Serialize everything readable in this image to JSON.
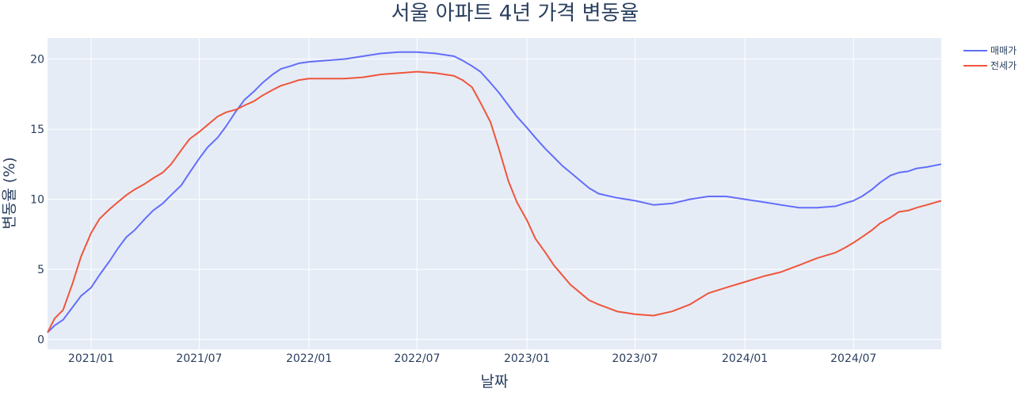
{
  "chart_data": {
    "type": "line",
    "title": "서울 아파트 4년 가격 변동율",
    "xlabel": "날짜",
    "ylabel": "변동율 (%)",
    "x_ticks": [
      "2021/01",
      "2021/07",
      "2022/01",
      "2022/07",
      "2023/01",
      "2023/07",
      "2024/01",
      "2024/07"
    ],
    "y_ticks": [
      0,
      5,
      10,
      15,
      20
    ],
    "xlim": [
      "2020/10/20",
      "2024/11/25"
    ],
    "ylim": [
      -0.7,
      21.5
    ],
    "grid": true,
    "legend_position": "top-right",
    "colors": {
      "plot_bg": "#e5ecf6",
      "grid": "#ffffff",
      "text": "#2a3f5f"
    },
    "series": [
      {
        "name": "매매가",
        "color": "#636efa",
        "x": [
          "2020/10/20",
          "2020/11/01",
          "2020/11/15",
          "2020/12/01",
          "2020/12/15",
          "2021/01/01",
          "2021/01/15",
          "2021/02/01",
          "2021/02/15",
          "2021/03/01",
          "2021/03/15",
          "2021/04/01",
          "2021/04/15",
          "2021/05/01",
          "2021/05/15",
          "2021/06/01",
          "2021/06/15",
          "2021/07/01",
          "2021/07/15",
          "2021/08/01",
          "2021/08/15",
          "2021/09/01",
          "2021/09/15",
          "2021/10/01",
          "2021/10/15",
          "2021/11/01",
          "2021/11/15",
          "2021/12/01",
          "2021/12/15",
          "2022/01/01",
          "2022/02/01",
          "2022/03/01",
          "2022/04/01",
          "2022/05/01",
          "2022/06/01",
          "2022/07/01",
          "2022/08/01",
          "2022/09/01",
          "2022/09/15",
          "2022/10/01",
          "2022/10/15",
          "2022/11/01",
          "2022/11/15",
          "2022/12/01",
          "2022/12/15",
          "2023/01/01",
          "2023/01/15",
          "2023/02/01",
          "2023/02/15",
          "2023/03/01",
          "2023/03/15",
          "2023/04/01",
          "2023/04/15",
          "2023/05/01",
          "2023/06/01",
          "2023/07/01",
          "2023/08/01",
          "2023/09/01",
          "2023/10/01",
          "2023/11/01",
          "2023/12/01",
          "2024/01/01",
          "2024/02/01",
          "2024/03/01",
          "2024/04/01",
          "2024/05/01",
          "2024/06/01",
          "2024/06/15",
          "2024/07/01",
          "2024/07/15",
          "2024/08/01",
          "2024/08/15",
          "2024/09/01",
          "2024/09/15",
          "2024/10/01",
          "2024/10/15",
          "2024/11/01",
          "2024/11/25"
        ],
        "y": [
          0.5,
          1.0,
          1.4,
          2.3,
          3.1,
          3.7,
          4.6,
          5.6,
          6.5,
          7.3,
          7.8,
          8.6,
          9.2,
          9.7,
          10.3,
          11.0,
          11.9,
          12.9,
          13.7,
          14.4,
          15.2,
          16.3,
          17.1,
          17.7,
          18.3,
          18.9,
          19.3,
          19.5,
          19.7,
          19.8,
          19.9,
          20.0,
          20.2,
          20.4,
          20.5,
          20.5,
          20.4,
          20.2,
          19.9,
          19.5,
          19.1,
          18.3,
          17.6,
          16.7,
          15.9,
          15.1,
          14.4,
          13.6,
          13.0,
          12.4,
          11.9,
          11.3,
          10.8,
          10.4,
          10.1,
          9.9,
          9.6,
          9.7,
          10.0,
          10.2,
          10.2,
          10.0,
          9.8,
          9.6,
          9.4,
          9.4,
          9.5,
          9.7,
          9.9,
          10.2,
          10.7,
          11.2,
          11.7,
          11.9,
          12.0,
          12.2,
          12.3,
          12.5
        ]
      },
      {
        "name": "전세가",
        "color": "#ef553b",
        "x": [
          "2020/10/20",
          "2020/11/01",
          "2020/11/15",
          "2020/12/01",
          "2020/12/15",
          "2021/01/01",
          "2021/01/15",
          "2021/02/01",
          "2021/02/15",
          "2021/03/01",
          "2021/03/15",
          "2021/04/01",
          "2021/04/15",
          "2021/05/01",
          "2021/05/15",
          "2021/06/01",
          "2021/06/15",
          "2021/07/01",
          "2021/07/15",
          "2021/08/01",
          "2021/08/15",
          "2021/09/01",
          "2021/09/15",
          "2021/10/01",
          "2021/10/15",
          "2021/11/01",
          "2021/11/15",
          "2021/12/01",
          "2021/12/15",
          "2022/01/01",
          "2022/02/01",
          "2022/03/01",
          "2022/04/01",
          "2022/05/01",
          "2022/06/01",
          "2022/07/01",
          "2022/08/01",
          "2022/09/01",
          "2022/09/15",
          "2022/10/01",
          "2022/10/15",
          "2022/11/01",
          "2022/11/15",
          "2022/12/01",
          "2022/12/15",
          "2023/01/01",
          "2023/01/15",
          "2023/02/01",
          "2023/02/15",
          "2023/03/01",
          "2023/03/15",
          "2023/04/01",
          "2023/04/15",
          "2023/05/01",
          "2023/06/01",
          "2023/07/01",
          "2023/08/01",
          "2023/09/01",
          "2023/10/01",
          "2023/11/01",
          "2023/12/01",
          "2024/01/01",
          "2024/02/01",
          "2024/03/01",
          "2024/04/01",
          "2024/05/01",
          "2024/06/01",
          "2024/06/15",
          "2024/07/01",
          "2024/07/15",
          "2024/08/01",
          "2024/08/15",
          "2024/09/01",
          "2024/09/15",
          "2024/10/01",
          "2024/10/15",
          "2024/11/01",
          "2024/11/25"
        ],
        "y": [
          0.5,
          1.5,
          2.1,
          4.0,
          5.9,
          7.6,
          8.6,
          9.3,
          9.8,
          10.3,
          10.7,
          11.1,
          11.5,
          11.9,
          12.5,
          13.5,
          14.3,
          14.8,
          15.3,
          15.9,
          16.2,
          16.4,
          16.7,
          17.0,
          17.4,
          17.8,
          18.1,
          18.3,
          18.5,
          18.6,
          18.6,
          18.6,
          18.7,
          18.9,
          19.0,
          19.1,
          19.0,
          18.8,
          18.5,
          18.0,
          16.9,
          15.5,
          13.6,
          11.3,
          9.8,
          8.5,
          7.2,
          6.2,
          5.3,
          4.6,
          3.9,
          3.3,
          2.8,
          2.5,
          2.0,
          1.8,
          1.7,
          2.0,
          2.5,
          3.3,
          3.7,
          4.1,
          4.5,
          4.8,
          5.3,
          5.8,
          6.2,
          6.5,
          6.9,
          7.3,
          7.8,
          8.3,
          8.7,
          9.1,
          9.2,
          9.4,
          9.6,
          9.9
        ]
      }
    ]
  }
}
